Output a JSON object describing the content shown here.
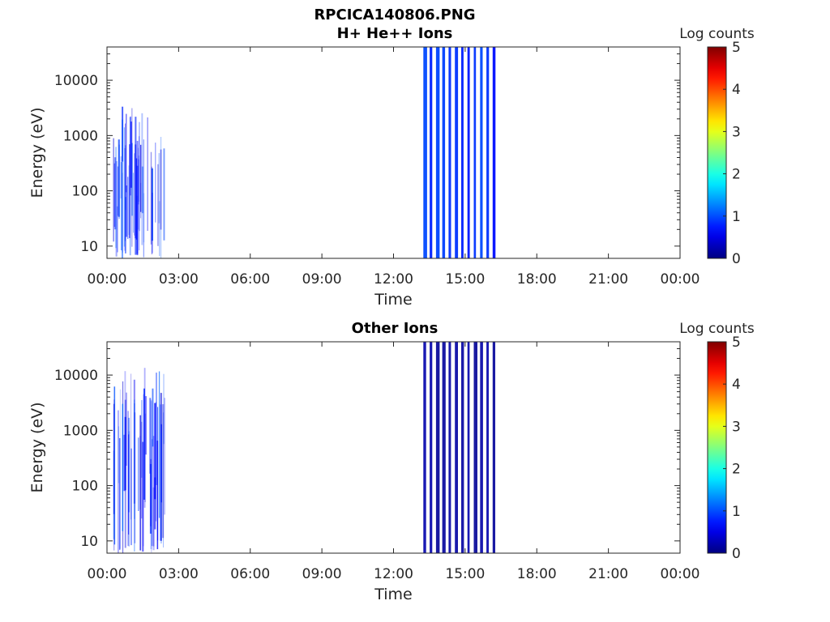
{
  "figure": {
    "title": "RPCICA140806.PNG"
  },
  "chart_data": [
    {
      "type": "heatmap",
      "title": "H+ He++ Ions",
      "xlabel": "Time",
      "ylabel": "Energy (eV)",
      "x_ticks": [
        "00:00",
        "03:00",
        "06:00",
        "09:00",
        "12:00",
        "15:00",
        "18:00",
        "21:00",
        "00:00"
      ],
      "y_scale": "log",
      "y_ticks": [
        10,
        100,
        1000,
        10000
      ],
      "y_tick_labels": [
        "10",
        "100",
        "1000",
        "10000"
      ],
      "ylim": [
        6,
        40000
      ],
      "colorbar": {
        "label": "Log counts",
        "range": [
          0,
          5
        ],
        "ticks": [
          "0",
          "1",
          "2",
          "3",
          "4",
          "5"
        ],
        "colormap": "jet"
      },
      "data_segments": [
        {
          "start": "00:15",
          "end": "02:25",
          "max_energy_eV": 4000,
          "typical_log_counts": 0.5,
          "style": "sparse"
        },
        {
          "start": "13:15",
          "end": "16:25",
          "max_energy_eV": 40000,
          "typical_log_counts": 1.0,
          "style": "dense"
        }
      ]
    },
    {
      "type": "heatmap",
      "title": "Other Ions",
      "xlabel": "Time",
      "ylabel": "Energy (eV)",
      "x_ticks": [
        "00:00",
        "03:00",
        "06:00",
        "09:00",
        "12:00",
        "15:00",
        "18:00",
        "21:00",
        "00:00"
      ],
      "y_scale": "log",
      "y_ticks": [
        10,
        100,
        1000,
        10000
      ],
      "y_tick_labels": [
        "10",
        "100",
        "1000",
        "10000"
      ],
      "ylim": [
        6,
        40000
      ],
      "colorbar": {
        "label": "Log counts",
        "range": [
          0,
          5
        ],
        "ticks": [
          "0",
          "1",
          "2",
          "3",
          "4",
          "5"
        ],
        "colormap": "jet"
      },
      "data_segments": [
        {
          "start": "00:15",
          "end": "02:25",
          "max_energy_eV": 20000,
          "typical_log_counts": 0.3,
          "style": "sparse"
        },
        {
          "start": "13:15",
          "end": "16:25",
          "max_energy_eV": 40000,
          "typical_log_counts": 0.2,
          "style": "dense"
        }
      ]
    }
  ]
}
